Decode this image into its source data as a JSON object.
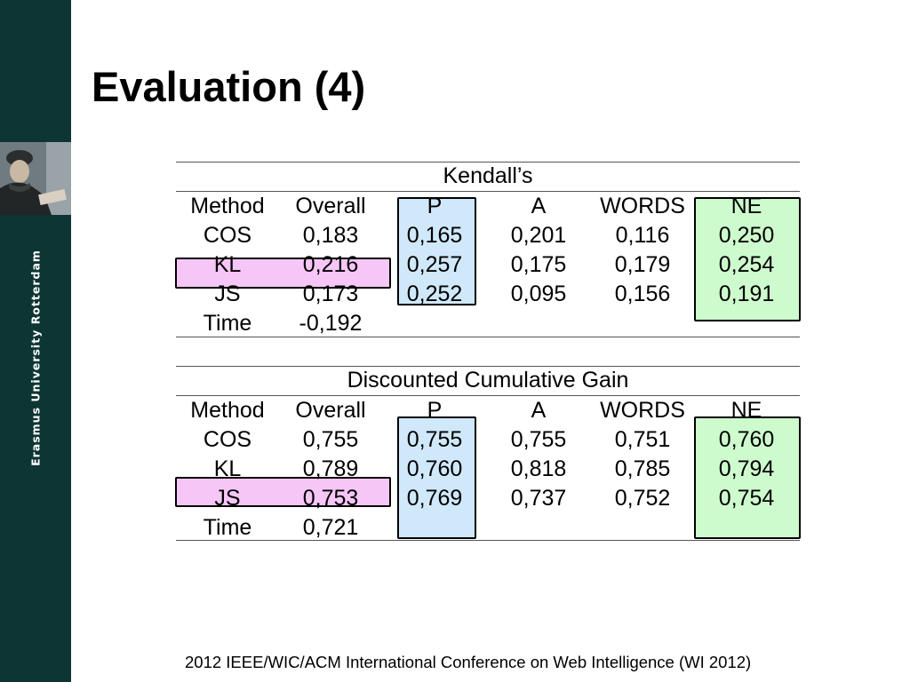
{
  "brand": {
    "text": "Erasmus University Rotterdam"
  },
  "slide": {
    "title": "Evaluation (4)"
  },
  "tables": [
    {
      "caption": "Kendall’s",
      "columns": [
        "Method",
        "Overall",
        "P",
        "A",
        "WORDS",
        "NE"
      ],
      "rows": [
        [
          "COS",
          "0,183",
          "0,165",
          "0,201",
          "0,116",
          "0,250"
        ],
        [
          "KL",
          "0,216",
          "0,257",
          "0,175",
          "0,179",
          "0,254"
        ],
        [
          "JS",
          "0,173",
          "0,252",
          "0,095",
          "0,156",
          "0,191"
        ],
        [
          "Time",
          "-0,192",
          "",
          "",
          "",
          ""
        ]
      ]
    },
    {
      "caption": "Discounted Cumulative Gain",
      "columns": [
        "Method",
        "Overall",
        "P",
        "A",
        "WORDS",
        "NE"
      ],
      "rows": [
        [
          "COS",
          "0,755",
          "0,755",
          "0,755",
          "0,751",
          "0,760"
        ],
        [
          "KL",
          "0,789",
          "0,760",
          "0,818",
          "0,785",
          "0,794"
        ],
        [
          "JS",
          "0,753",
          "0,769",
          "0,737",
          "0,752",
          "0,754"
        ],
        [
          "Time",
          "0,721",
          "",
          "",
          "",
          ""
        ]
      ]
    }
  ],
  "highlight_colors": {
    "p_column": "#cfe8fa",
    "ne_column": "#cefbce",
    "best_row": "#f6c6f6"
  },
  "footer": {
    "text": "2012 IEEE/WIC/ACM International Conference on Web Intelligence (WI 2012)"
  }
}
